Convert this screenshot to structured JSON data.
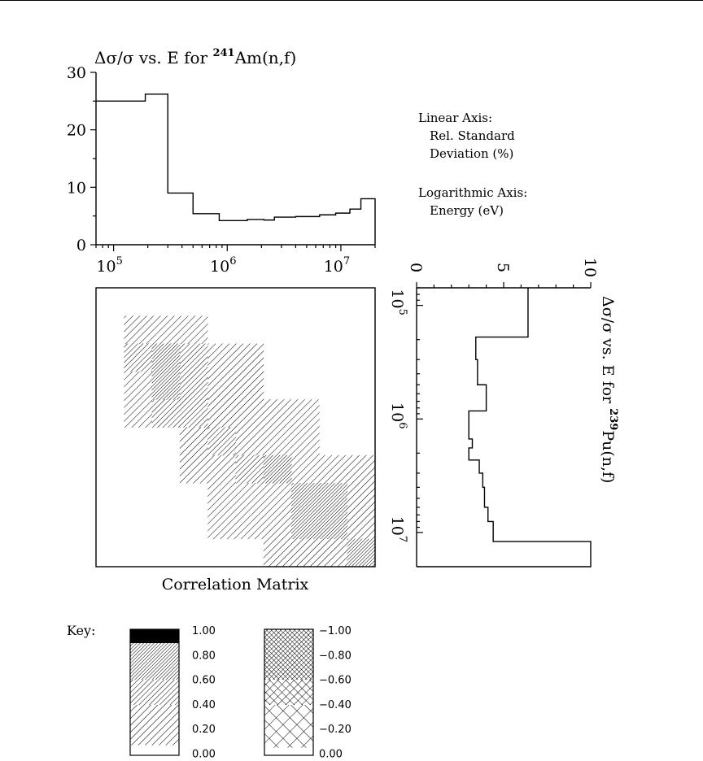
{
  "colors": {
    "ink": "#000000",
    "background": "#ffffff"
  },
  "chart_data": [
    {
      "type": "line",
      "style": "step",
      "title": "Δσ/σ vs. E for 241Am(n,f)",
      "title_parts": {
        "prefix": "Δσ/σ vs. E for ",
        "superscript": "241",
        "suffix": "Am(n,f)"
      },
      "x_scale": "log",
      "xlim": [
        70000,
        20000000
      ],
      "ylim": [
        0,
        30
      ],
      "y_ticks": [
        "0",
        "10",
        "20",
        "30"
      ],
      "x_ticks": [
        {
          "base": "10",
          "exp": "5",
          "value": 100000
        },
        {
          "base": "10",
          "exp": "6",
          "value": 1000000
        },
        {
          "base": "10",
          "exp": "7",
          "value": 10000000
        }
      ],
      "edges": [
        70000,
        190000,
        300000,
        500000,
        850000,
        1500000,
        2100000,
        2600000,
        4000000,
        6500000,
        9000000,
        12000000,
        15000000,
        20000000
      ],
      "values": [
        25,
        26.2,
        9,
        5.4,
        4.2,
        4.4,
        4.3,
        4.8,
        4.9,
        5.2,
        5.5,
        6.2,
        8.0
      ],
      "legend_note": {
        "linear_heading": "Linear Axis:",
        "linear_lines": [
          "Rel. Standard",
          "Deviation (%)"
        ],
        "log_heading": "Logarithmic Axis:",
        "log_lines": [
          "Energy (eV)"
        ]
      }
    },
    {
      "type": "heatmap",
      "title": "Correlation Matrix",
      "grid_size": 10,
      "cells": [
        {
          "r": 1,
          "c": 1,
          "value": 0.55
        },
        {
          "r": 1,
          "c": 2,
          "value": 0.55
        },
        {
          "r": 1,
          "c": 3,
          "value": 0.4
        },
        {
          "r": 2,
          "c": 1,
          "value": 0.6
        },
        {
          "r": 2,
          "c": 2,
          "value": 0.85
        },
        {
          "r": 2,
          "c": 3,
          "value": 0.65
        },
        {
          "r": 2,
          "c": 4,
          "value": 0.45
        },
        {
          "r": 2,
          "c": 5,
          "value": 0.35
        },
        {
          "r": 3,
          "c": 1,
          "value": 0.55
        },
        {
          "r": 3,
          "c": 2,
          "value": 0.9
        },
        {
          "r": 3,
          "c": 3,
          "value": 0.7
        },
        {
          "r": 3,
          "c": 4,
          "value": 0.5
        },
        {
          "r": 3,
          "c": 5,
          "value": 0.4
        },
        {
          "r": 4,
          "c": 1,
          "value": 0.45
        },
        {
          "r": 4,
          "c": 2,
          "value": 0.6
        },
        {
          "r": 4,
          "c": 3,
          "value": 0.75
        },
        {
          "r": 4,
          "c": 4,
          "value": 0.55
        },
        {
          "r": 4,
          "c": 5,
          "value": 0.45
        },
        {
          "r": 4,
          "c": 6,
          "value": 0.4
        },
        {
          "r": 4,
          "c": 7,
          "value": 0.3
        },
        {
          "r": 5,
          "c": 3,
          "value": 0.5
        },
        {
          "r": 5,
          "c": 4,
          "value": 0.7
        },
        {
          "r": 5,
          "c": 5,
          "value": 0.55
        },
        {
          "r": 5,
          "c": 6,
          "value": 0.45
        },
        {
          "r": 5,
          "c": 7,
          "value": 0.4
        },
        {
          "r": 6,
          "c": 3,
          "value": 0.4
        },
        {
          "r": 6,
          "c": 4,
          "value": 0.5
        },
        {
          "r": 6,
          "c": 5,
          "value": 0.65
        },
        {
          "r": 6,
          "c": 6,
          "value": 0.85
        },
        {
          "r": 6,
          "c": 7,
          "value": 0.5
        },
        {
          "r": 6,
          "c": 8,
          "value": 0.4
        },
        {
          "r": 6,
          "c": 9,
          "value": 0.35
        },
        {
          "r": 7,
          "c": 4,
          "value": 0.4
        },
        {
          "r": 7,
          "c": 5,
          "value": 0.5
        },
        {
          "r": 7,
          "c": 6,
          "value": 0.55
        },
        {
          "r": 7,
          "c": 7,
          "value": 0.9
        },
        {
          "r": 7,
          "c": 8,
          "value": 0.9
        },
        {
          "r": 7,
          "c": 9,
          "value": 0.5
        },
        {
          "r": 8,
          "c": 4,
          "value": 0.4
        },
        {
          "r": 8,
          "c": 5,
          "value": 0.45
        },
        {
          "r": 8,
          "c": 6,
          "value": 0.5
        },
        {
          "r": 8,
          "c": 7,
          "value": 0.9
        },
        {
          "r": 8,
          "c": 8,
          "value": 0.9
        },
        {
          "r": 8,
          "c": 9,
          "value": 0.55
        },
        {
          "r": 9,
          "c": 6,
          "value": 0.45
        },
        {
          "r": 9,
          "c": 7,
          "value": 0.5
        },
        {
          "r": 9,
          "c": 8,
          "value": 0.5
        },
        {
          "r": 9,
          "c": 9,
          "value": 0.9
        }
      ]
    },
    {
      "type": "line",
      "style": "step",
      "orientation": "vertical",
      "title": "Δσ/σ vs. E for 239Pu(n,f)",
      "title_parts": {
        "prefix": "Δσ/σ vs. E for ",
        "superscript": "239",
        "suffix": "Pu(n,f)"
      },
      "x_scale": "log",
      "xlim": [
        70000,
        20000000
      ],
      "ylim": [
        0,
        10
      ],
      "y_ticks": [
        "0",
        "5",
        "10"
      ],
      "x_ticks": [
        {
          "base": "10",
          "exp": "5",
          "value": 100000
        },
        {
          "base": "10",
          "exp": "6",
          "value": 1000000
        },
        {
          "base": "10",
          "exp": "7",
          "value": 10000000
        }
      ],
      "edges": [
        70000,
        190000,
        300000,
        500000,
        850000,
        1500000,
        1800000,
        2300000,
        3000000,
        4000000,
        6000000,
        8000000,
        12000000,
        20000000
      ],
      "values": [
        6.4,
        3.4,
        3.5,
        4.0,
        3.0,
        3.2,
        3.0,
        3.6,
        3.8,
        3.9,
        4.1,
        4.4,
        10.0
      ]
    },
    {
      "type": "legend",
      "title": "Key:",
      "positive_labels": [
        "1.00",
        "0.80",
        "0.60",
        "0.40",
        "0.20",
        "0.00"
      ],
      "negative_labels": [
        "−1.00",
        "−0.80",
        "−0.60",
        "−0.40",
        "−0.20",
        "0.00"
      ]
    }
  ]
}
